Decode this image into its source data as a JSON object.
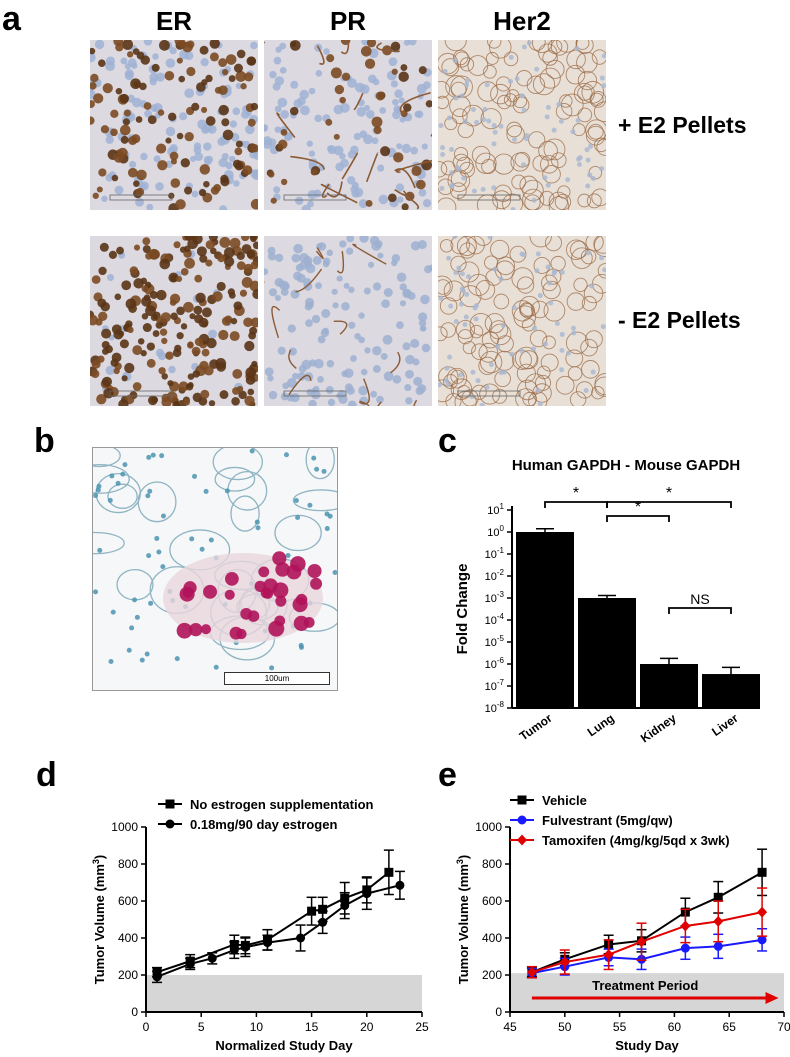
{
  "panel_a": {
    "letter": "a",
    "columns": [
      "ER",
      "PR",
      "Her2"
    ],
    "rows": [
      "+ E2 Pellets",
      "- E2 Pellets"
    ]
  },
  "panel_b": {
    "letter": "b",
    "scale_label": "100um"
  },
  "panel_c": {
    "letter": "c"
  },
  "panel_d": {
    "letter": "d"
  },
  "panel_e": {
    "letter": "e"
  },
  "chart_data": [
    {
      "id": "c",
      "type": "bar",
      "title": "Human GAPDH - Mouse GAPDH",
      "ylabel": "Fold Change",
      "xlabel": "",
      "yscale": "log10",
      "ylim": [
        1e-08,
        10
      ],
      "ytick_exponents": [
        1,
        0,
        -1,
        -2,
        -3,
        -4,
        -5,
        -6,
        -7,
        -8
      ],
      "tick_base": "10",
      "categories": [
        "Tumor",
        "Lung",
        "Kidney",
        "Liver"
      ],
      "values": [
        1.0,
        0.001,
        1e-06,
        3.5e-07
      ],
      "errors_upper": [
        1.4,
        0.0013,
        1.8e-06,
        7e-07
      ],
      "significance": [
        {
          "from": 0,
          "to": 1,
          "label": "*"
        },
        {
          "from": 1,
          "to": 2,
          "label": "*"
        },
        {
          "from": 1,
          "to": 3,
          "label": "*"
        },
        {
          "from": 2,
          "to": 3,
          "label": "NS"
        }
      ]
    },
    {
      "id": "d",
      "type": "line",
      "xlabel": "Normalized Study Day",
      "ylabel": "Tumor Volume (mm",
      "ylabel_sup": "3",
      "ylabel_end": ")",
      "xlim": [
        0,
        25
      ],
      "ylim": [
        0,
        1000
      ],
      "xticks": [
        0,
        5,
        10,
        15,
        20,
        25
      ],
      "yticks": [
        0,
        200,
        400,
        600,
        800,
        1000
      ],
      "shade_below": 200,
      "series": [
        {
          "name": "No estrogen supplementation",
          "marker": "square",
          "color": "#000000",
          "x": [
            1,
            4,
            8,
            9,
            11,
            15,
            16,
            18,
            20,
            22
          ],
          "y": [
            215,
            275,
            365,
            360,
            390,
            545,
            555,
            615,
            660,
            755
          ],
          "err": [
            25,
            35,
            50,
            45,
            55,
            75,
            65,
            85,
            70,
            120
          ]
        },
        {
          "name": "0.18mg/90 day estrogen",
          "marker": "circle",
          "color": "#000000",
          "x": [
            1,
            4,
            6,
            8,
            9,
            11,
            14,
            16,
            18,
            20,
            23
          ],
          "y": [
            190,
            260,
            290,
            335,
            350,
            375,
            400,
            485,
            575,
            640,
            685
          ],
          "err": [
            30,
            30,
            30,
            45,
            50,
            40,
            70,
            60,
            70,
            85,
            75
          ]
        }
      ]
    },
    {
      "id": "e",
      "type": "line",
      "xlabel": "Study Day",
      "ylabel": "Tumor Volume (mm",
      "ylabel_sup": "3",
      "ylabel_end": ")",
      "xlim": [
        45,
        70
      ],
      "ylim": [
        0,
        1000
      ],
      "xticks": [
        45,
        50,
        55,
        60,
        65,
        70
      ],
      "yticks": [
        0,
        200,
        400,
        600,
        800,
        1000
      ],
      "shade_below": 210,
      "annotation": "Treatment Period",
      "treatment_range": [
        47,
        69.5
      ],
      "series": [
        {
          "name": "Vehicle",
          "marker": "square",
          "color": "#000000",
          "x": [
            47,
            50,
            54,
            57,
            61,
            64,
            68
          ],
          "y": [
            215,
            285,
            365,
            385,
            540,
            620,
            755
          ],
          "err": [
            25,
            35,
            50,
            60,
            75,
            85,
            125
          ]
        },
        {
          "name": "Fulvestrant (5mg/qw)",
          "marker": "circle",
          "color": "#1a1aff",
          "x": [
            47,
            50,
            54,
            57,
            61,
            64,
            68
          ],
          "y": [
            210,
            245,
            295,
            285,
            345,
            355,
            390
          ],
          "err": [
            25,
            45,
            45,
            55,
            60,
            65,
            60
          ]
        },
        {
          "name": "Tamoxifen (4mg/kg/5qd x 3wk)",
          "marker": "diamond",
          "color": "#e00000",
          "x": [
            47,
            50,
            54,
            57,
            61,
            64,
            68
          ],
          "y": [
            215,
            270,
            310,
            380,
            465,
            490,
            540
          ],
          "err": [
            30,
            65,
            80,
            100,
            90,
            110,
            130
          ]
        }
      ]
    }
  ]
}
